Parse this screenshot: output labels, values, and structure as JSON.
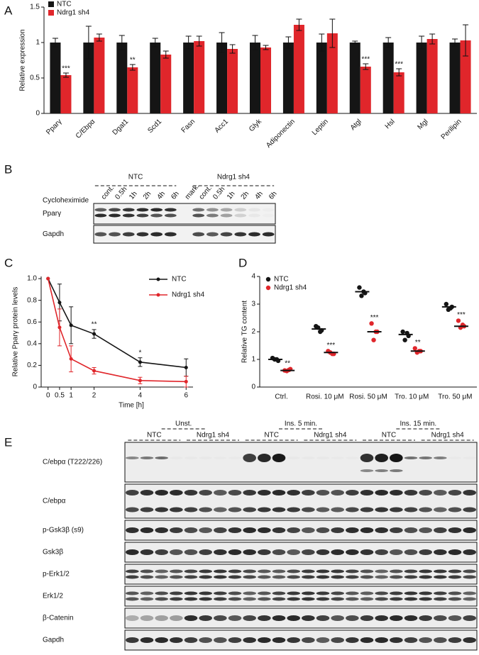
{
  "panels": [
    "A",
    "B",
    "C",
    "D",
    "E"
  ],
  "chart_data": [
    {
      "type": "bar",
      "ylabel": "Relative expression",
      "legend": "upper left",
      "categories": [
        "Pparγ",
        "C/Ebpα",
        "Dgat1",
        "Scd1",
        "Fasn",
        "Acc1",
        "Glyk",
        "Adiponectin",
        "Leptin",
        "Atgl",
        "Hsl",
        "Mgl",
        "Perilipin"
      ],
      "ylim": [
        0,
        1.5
      ],
      "yticks": [
        0,
        0.5,
        1,
        1.5
      ],
      "series": [
        {
          "name": "NTC",
          "color": "#151515",
          "values": [
            1.0,
            1.0,
            1.0,
            1.0,
            1.0,
            1.0,
            1.0,
            1.0,
            1.0,
            1.0,
            1.0,
            1.0,
            1.0
          ],
          "errors": [
            0.06,
            0.23,
            0.1,
            0.06,
            0.09,
            0.14,
            0.1,
            0.08,
            0.12,
            0.02,
            0.07,
            0.09,
            0.05
          ]
        },
        {
          "name": "Ndrg1 sh4",
          "color": "#e0262b",
          "values": [
            0.54,
            1.07,
            0.65,
            0.83,
            1.02,
            0.91,
            0.93,
            1.25,
            1.13,
            0.66,
            0.58,
            1.05,
            1.03
          ],
          "errors": [
            0.03,
            0.05,
            0.04,
            0.05,
            0.07,
            0.06,
            0.03,
            0.08,
            0.2,
            0.04,
            0.05,
            0.07,
            0.22
          ],
          "significance": [
            "***",
            null,
            "**",
            null,
            null,
            null,
            null,
            null,
            null,
            "***",
            "***",
            null,
            null
          ]
        }
      ]
    },
    {
      "type": "line",
      "xlabel": "Time [h]",
      "ylabel": "Relative Pparγ protein levels",
      "legend": "upper right",
      "x": [
        0,
        0.5,
        1,
        2,
        4,
        6
      ],
      "xlim": [
        -0.3,
        6.3
      ],
      "xticks": [
        0,
        0.5,
        1,
        2,
        4,
        6
      ],
      "ylim": [
        0,
        1.02
      ],
      "yticks": [
        0,
        0.2,
        0.4,
        0.6,
        0.8,
        {
          "value": 1,
          "label": "1.0"
        }
      ],
      "series": [
        {
          "name": "NTC",
          "color": "#151515",
          "values": [
            1.0,
            0.78,
            0.57,
            0.49,
            0.23,
            0.18
          ],
          "errors": [
            0,
            0.17,
            0.17,
            0.04,
            0.04,
            0.08
          ],
          "significance": [
            null,
            null,
            null,
            "**",
            "*",
            null
          ]
        },
        {
          "name": "Ndrg1 sh4",
          "color": "#e0262b",
          "values": [
            1.0,
            0.55,
            0.26,
            0.15,
            0.06,
            0.05
          ],
          "errors": [
            0,
            0.17,
            0.12,
            0.03,
            0.03,
            0.05
          ]
        }
      ]
    },
    {
      "type": "strip",
      "ylabel": "Relative TG content",
      "legend": "upper left",
      "categories": [
        "Ctrl.",
        "Rosi. 10 μM",
        "Rosi. 50 μM",
        "Tro. 10 μM",
        "Tro. 50 μM"
      ],
      "ylim": [
        0,
        4
      ],
      "yticks": [
        0,
        1,
        2,
        3,
        4
      ],
      "series": [
        {
          "name": "NTC",
          "color": "#151515",
          "values": [
            [
              1.05,
              0.95,
              1.0,
              1.0
            ],
            [
              2.2,
              2.05,
              2.15,
              2.0
            ],
            [
              3.6,
              3.4,
              3.3,
              3.45
            ],
            [
              2.0,
              1.85,
              1.7,
              1.95
            ],
            [
              3.0,
              2.9,
              2.8,
              2.85
            ]
          ],
          "means": [
            1.0,
            2.1,
            3.45,
            1.9,
            2.9
          ]
        },
        {
          "name": "Ndrg1 sh4",
          "color": "#e0262b",
          "values": [
            [
              0.6,
              0.65,
              0.58,
              0.62
            ],
            [
              1.3,
              1.2,
              1.25,
              1.2
            ],
            [
              2.3,
              2.0,
              1.7,
              2.0
            ],
            [
              1.4,
              1.3,
              1.25,
              1.3
            ],
            [
              2.4,
              2.2,
              2.15,
              2.25
            ]
          ],
          "means": [
            0.6,
            1.25,
            2.0,
            1.3,
            2.2
          ],
          "significance": [
            "**",
            "***",
            "***",
            "**",
            "***"
          ]
        }
      ]
    }
  ],
  "blots": [
    {
      "groups": [
        "NTC",
        "Ndrg1 sh4"
      ],
      "lane_title": "Cycloheximide",
      "lanes": [
        "cont.",
        "0.5h",
        "1h",
        "2h",
        "4h",
        "6h",
        "mark.",
        "cont.",
        "0.5h",
        "1h",
        "2h",
        "4h",
        "6h"
      ],
      "rows": [
        "Pparγ",
        "Gapdh"
      ]
    },
    {
      "groups": [
        "Unst.",
        "Ins. 5 min.",
        "Ins. 15 min."
      ],
      "subgroups": [
        "NTC",
        "Ndrg1 sh4",
        "NTC",
        "Ndrg1 sh4",
        "NTC",
        "Ndrg1 sh4"
      ],
      "rows": [
        "C/ebpα (T222/226)",
        "C/ebpα",
        "p-Gsk3β (s9)",
        "Gsk3β",
        "p-Erk1/2",
        "Erk1/2",
        "β-Catenin",
        "Gapdh"
      ]
    }
  ]
}
